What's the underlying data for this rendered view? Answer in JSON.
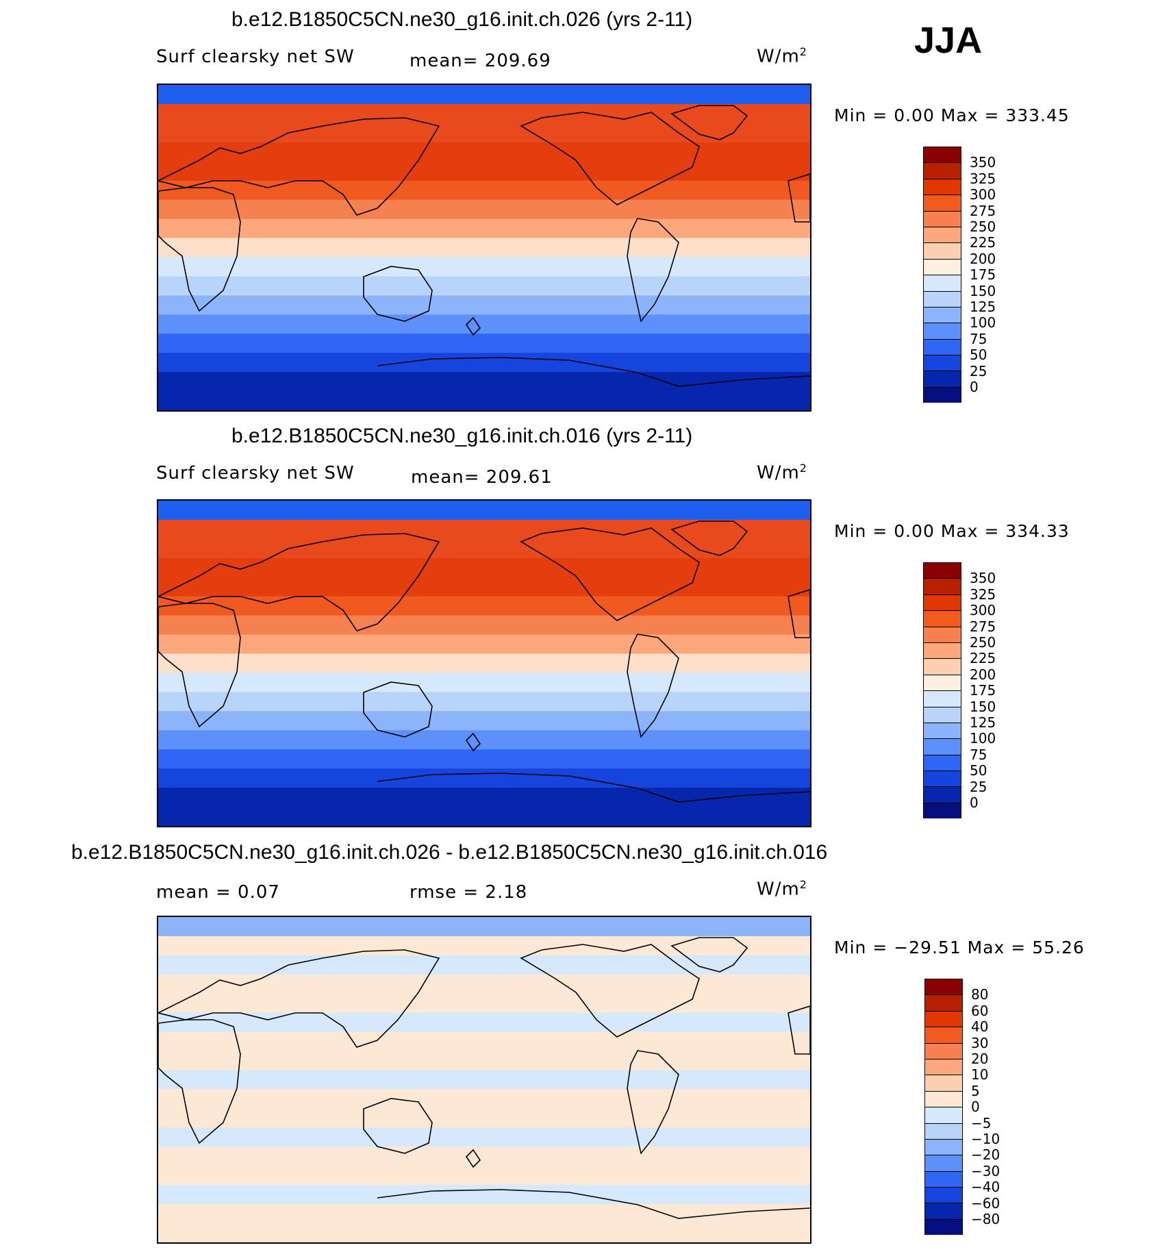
{
  "season": "JJA",
  "panels": [
    {
      "id": "case",
      "title": "b.e12.B1850C5CN.ne30_g16.init.ch.026 (yrs 2-11)",
      "left_label": "Surf clearsky net SW",
      "center_label": "mean= 209.69",
      "units_base": "W/m",
      "units_sup": "2",
      "minmax": "Min =     0.00 Max  =  333.45",
      "colorbar": {
        "labels": [
          "350",
          "325",
          "300",
          "275",
          "250",
          "225",
          "200",
          "175",
          "150",
          "125",
          "100",
          "75",
          "50",
          "25",
          "0"
        ],
        "colors": [
          "#8b0000",
          "#b82000",
          "#e03800",
          "#f25a1e",
          "#f88050",
          "#fca87c",
          "#fdd0b2",
          "#fdf0e0",
          "#d6e8fb",
          "#b8d4fb",
          "#8cb4fb",
          "#5e90fb",
          "#2f66f5",
          "#1645dd",
          "#0526ad",
          "#050f80"
        ]
      },
      "bands": [
        "#1f5ff0",
        "#e84a1e",
        "#e84a1e",
        "#e43e0e",
        "#e43e0e",
        "#f05a20",
        "#f58050",
        "#fca87c",
        "#fde0cc",
        "#d6e8fb",
        "#b8d4fb",
        "#8cb4fb",
        "#5e90fb",
        "#2f66f5",
        "#1645dd",
        "#0526ad",
        "#0526ad"
      ]
    },
    {
      "id": "control",
      "title": "b.e12.B1850C5CN.ne30_g16.init.ch.016 (yrs 2-11)",
      "left_label": "Surf clearsky net SW",
      "center_label": "mean= 209.61",
      "units_base": "W/m",
      "units_sup": "2",
      "minmax": "Min =     0.00 Max  =  334.33",
      "colorbar": {
        "labels": [
          "350",
          "325",
          "300",
          "275",
          "250",
          "225",
          "200",
          "175",
          "150",
          "125",
          "100",
          "75",
          "50",
          "25",
          "0"
        ],
        "colors": [
          "#8b0000",
          "#b82000",
          "#e03800",
          "#f25a1e",
          "#f88050",
          "#fca87c",
          "#fdd0b2",
          "#fdf0e0",
          "#d6e8fb",
          "#b8d4fb",
          "#8cb4fb",
          "#5e90fb",
          "#2f66f5",
          "#1645dd",
          "#0526ad",
          "#050f80"
        ]
      },
      "bands": [
        "#1f5ff0",
        "#e84a1e",
        "#e84a1e",
        "#e43e0e",
        "#e43e0e",
        "#f05a20",
        "#f58050",
        "#fca87c",
        "#fde0cc",
        "#d6e8fb",
        "#b8d4fb",
        "#8cb4fb",
        "#5e90fb",
        "#2f66f5",
        "#1645dd",
        "#0526ad",
        "#0526ad"
      ]
    },
    {
      "id": "diff",
      "title": "b.e12.B1850C5CN.ne30_g16.init.ch.026 - b.e12.B1850C5CN.ne30_g16.init.ch.016",
      "left_label": "mean =     0.07",
      "center_label": "rmse =     2.18",
      "units_base": "W/m",
      "units_sup": "2",
      "minmax": "Min = −29.51  Max  =    55.26",
      "colorbar": {
        "labels": [
          "80",
          "60",
          "40",
          "30",
          "20",
          "10",
          "5",
          "0",
          "−5",
          "−10",
          "−20",
          "−30",
          "−40",
          "−60",
          "−80"
        ],
        "colors": [
          "#8b0000",
          "#b82000",
          "#e03800",
          "#f25a1e",
          "#f88050",
          "#fca87c",
          "#fdd0b2",
          "#fde8d6",
          "#d6e8fb",
          "#b8d4fb",
          "#8cb4fb",
          "#5e90fb",
          "#2f66f5",
          "#1645dd",
          "#0526ad",
          "#050f80"
        ]
      },
      "bands": [
        "#8cb4fb",
        "#fde8d6",
        "#d6e8fb",
        "#fde8d6",
        "#fde8d6",
        "#d6e8fb",
        "#fde8d6",
        "#fde8d6",
        "#d6e8fb",
        "#fde8d6",
        "#fde8d6",
        "#d6e8fb",
        "#fde8d6",
        "#fde8d6",
        "#d6e8fb",
        "#fde8d6",
        "#fde8d6"
      ]
    }
  ]
}
